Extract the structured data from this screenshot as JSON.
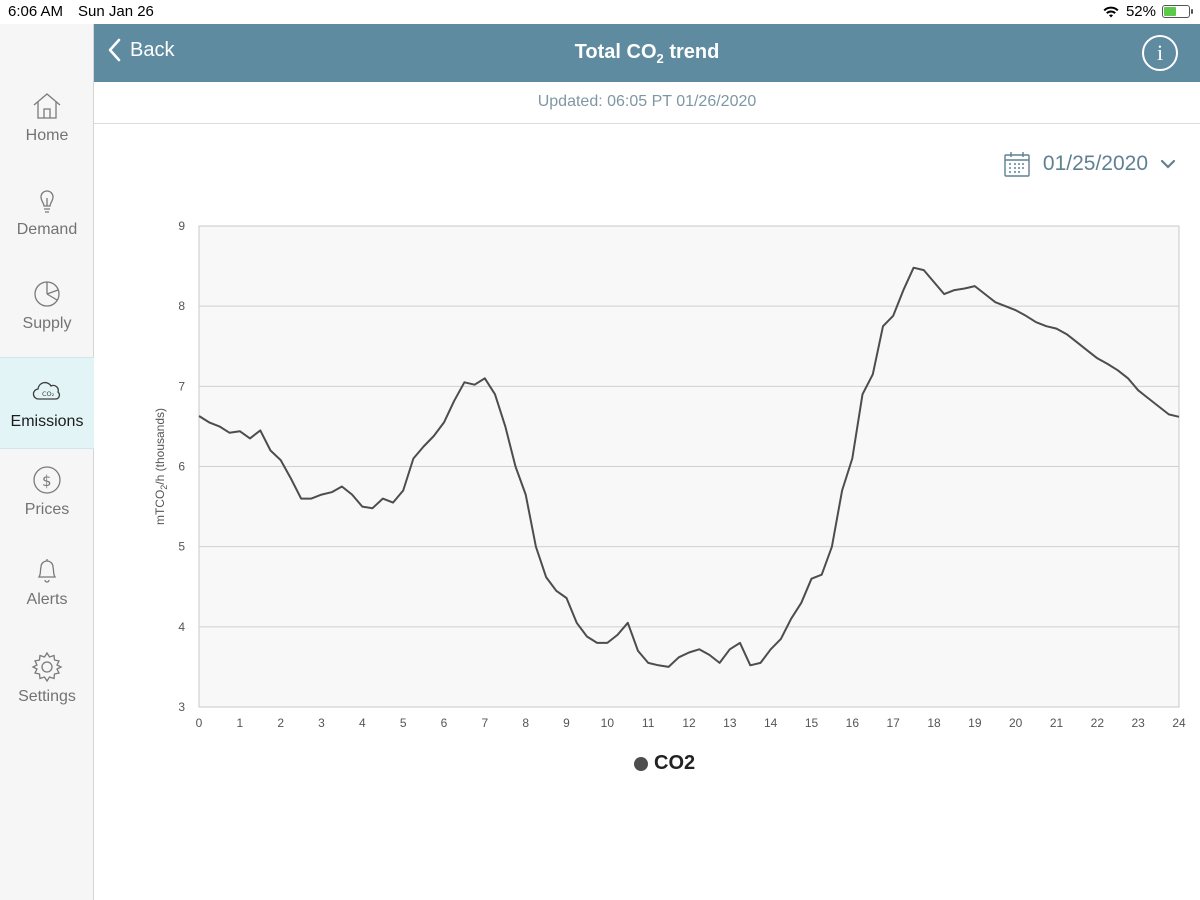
{
  "status_bar": {
    "time": "6:06 AM",
    "date": "Sun Jan 26",
    "battery": "52%",
    "battery_level": 0.52
  },
  "sidebar": {
    "items": [
      {
        "label": "Home",
        "icon": "home-icon",
        "active": false
      },
      {
        "label": "Demand",
        "icon": "lightbulb-icon",
        "active": false
      },
      {
        "label": "Supply",
        "icon": "pie-chart-icon",
        "active": false
      },
      {
        "label": "Emissions",
        "icon": "co2-cloud-icon",
        "active": true
      },
      {
        "label": "Prices",
        "icon": "dollar-icon",
        "active": false
      },
      {
        "label": "Alerts",
        "icon": "bell-icon",
        "active": false
      },
      {
        "label": "Settings",
        "icon": "gear-icon",
        "active": false
      }
    ]
  },
  "header": {
    "back_label": "Back",
    "title_prefix": "Total CO",
    "title_sub": "2",
    "title_suffix": " trend",
    "info_label": "i"
  },
  "updated": "Updated: 06:05 PT 01/26/2020",
  "date_picker": {
    "value": "01/25/2020"
  },
  "colors": {
    "header": "#5e8b9f",
    "line": "#4d4d4d",
    "active_nav": "#e2f4f6",
    "accent": "#5f8192"
  },
  "chart_data": {
    "type": "line",
    "ylabel_main": "mTCO",
    "ylabel_sub": "2",
    "ylabel_rest": "/h (thousands)",
    "xlim": [
      0,
      24
    ],
    "ylim": [
      3,
      9
    ],
    "x_ticks": [
      0,
      1,
      2,
      3,
      4,
      5,
      6,
      7,
      8,
      9,
      10,
      11,
      12,
      13,
      14,
      15,
      16,
      17,
      18,
      19,
      20,
      21,
      22,
      23,
      24
    ],
    "y_ticks": [
      3,
      4,
      5,
      6,
      7,
      8,
      9
    ],
    "grid": true,
    "legend": "bottom-center",
    "series": [
      {
        "name": "CO2",
        "color": "#4d4d4d",
        "x": [
          0,
          0.25,
          0.5,
          0.75,
          1,
          1.25,
          1.5,
          1.75,
          2,
          2.25,
          2.5,
          2.75,
          3,
          3.25,
          3.5,
          3.75,
          4,
          4.25,
          4.5,
          4.75,
          5,
          5.25,
          5.5,
          5.75,
          6,
          6.25,
          6.5,
          6.75,
          7,
          7.25,
          7.5,
          7.75,
          8,
          8.25,
          8.5,
          8.75,
          9,
          9.25,
          9.5,
          9.75,
          10,
          10.25,
          10.5,
          10.75,
          11,
          11.25,
          11.5,
          11.75,
          12,
          12.25,
          12.5,
          12.75,
          13,
          13.25,
          13.5,
          13.75,
          14,
          14.25,
          14.5,
          14.75,
          15,
          15.25,
          15.5,
          15.75,
          16,
          16.25,
          16.5,
          16.75,
          17,
          17.25,
          17.5,
          17.75,
          18,
          18.25,
          18.5,
          18.75,
          19,
          19.25,
          19.5,
          19.75,
          20,
          20.25,
          20.5,
          20.75,
          21,
          21.25,
          21.5,
          21.75,
          22,
          22.25,
          22.5,
          22.75,
          23,
          23.25,
          23.5,
          23.75,
          24
        ],
        "values": [
          6.63,
          6.55,
          6.5,
          6.42,
          6.44,
          6.35,
          6.45,
          6.2,
          6.08,
          5.85,
          5.6,
          5.6,
          5.65,
          5.68,
          5.75,
          5.65,
          5.5,
          5.48,
          5.6,
          5.55,
          5.7,
          6.1,
          6.25,
          6.38,
          6.55,
          6.82,
          7.05,
          7.02,
          7.1,
          6.9,
          6.5,
          6.0,
          5.65,
          5.0,
          4.62,
          4.45,
          4.36,
          4.05,
          3.88,
          3.8,
          3.8,
          3.9,
          4.05,
          3.7,
          3.55,
          3.52,
          3.5,
          3.62,
          3.68,
          3.72,
          3.65,
          3.55,
          3.72,
          3.8,
          3.52,
          3.55,
          3.72,
          3.85,
          4.1,
          4.3,
          4.6,
          4.65,
          5.0,
          5.7,
          6.1,
          6.9,
          7.15,
          7.75,
          7.88,
          8.2,
          8.48,
          8.45,
          8.3,
          8.15,
          8.2,
          8.22,
          8.25,
          8.15,
          8.05,
          8.0,
          7.95,
          7.88,
          7.8,
          7.75,
          7.72,
          7.65,
          7.55,
          7.45,
          7.35,
          7.28,
          7.2,
          7.1,
          6.95,
          6.85,
          6.75,
          6.65,
          6.62
        ]
      }
    ]
  }
}
